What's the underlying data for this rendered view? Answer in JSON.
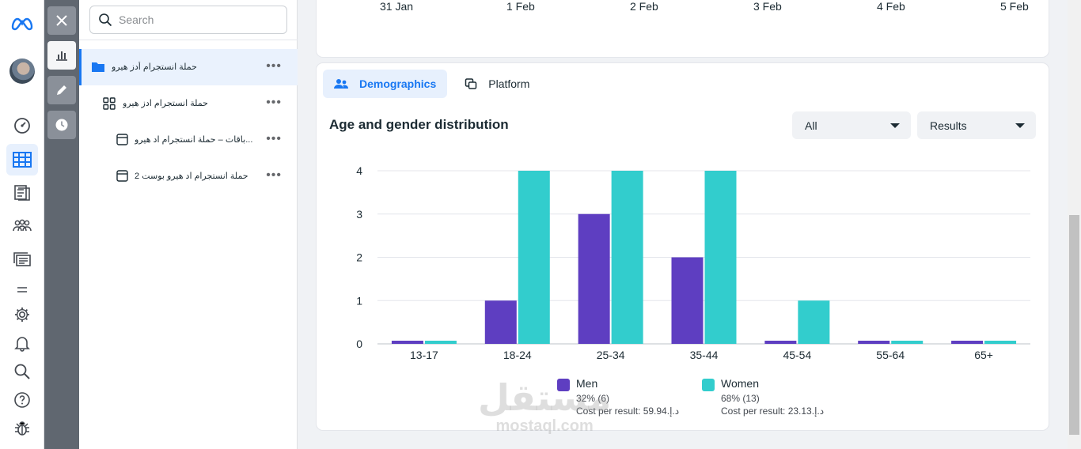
{
  "search": {
    "placeholder": "Search"
  },
  "tree": [
    {
      "label": "حملة انستجرام أدز هيرو",
      "level": "campaign"
    },
    {
      "label": "حملة انستجرام ادز هيرو",
      "level": "ad-set"
    },
    {
      "label": "...باقات – حملة انستجرام اد هيرو",
      "level": "ad"
    },
    {
      "label": "حملة انستجرام اد هيرو بوست 2",
      "level": "ad"
    }
  ],
  "tree_more": "•••",
  "timeline": {
    "dates": [
      "31 Jan",
      "1 Feb",
      "2 Feb",
      "3 Feb",
      "4 Feb",
      "5 Feb"
    ]
  },
  "tabs": [
    {
      "label": "Demographics",
      "icon": "people-icon"
    },
    {
      "label": "Platform",
      "icon": "platform-icon"
    }
  ],
  "section_title": "Age and gender distribution",
  "filters": {
    "audience": "All",
    "metric": "Results"
  },
  "chart_data": {
    "type": "bar",
    "categories": [
      "13-17",
      "18-24",
      "25-34",
      "35-44",
      "45-54",
      "55-64",
      "65+"
    ],
    "series": [
      {
        "name": "Men",
        "values": [
          0,
          1,
          3,
          2,
          0,
          0,
          0
        ],
        "color": "#5e3ec1"
      },
      {
        "name": "Women",
        "values": [
          0,
          4,
          4,
          4,
          1,
          0,
          0
        ],
        "color": "#32cdcd"
      }
    ],
    "yticks": [
      "0",
      "1",
      "2",
      "3",
      "4"
    ],
    "ylim": [
      0,
      4
    ],
    "grid": true,
    "legend": "bottom"
  },
  "legend": {
    "men": {
      "name": "Men",
      "share": "32% (6)",
      "cost": "Cost per result: 59.94.د.إ"
    },
    "women": {
      "name": "Women",
      "share": "68% (13)",
      "cost": "Cost per result: 23.13.د.إ"
    }
  },
  "watermark": {
    "arabic": "مستقل",
    "latin": "mostaql.com"
  }
}
